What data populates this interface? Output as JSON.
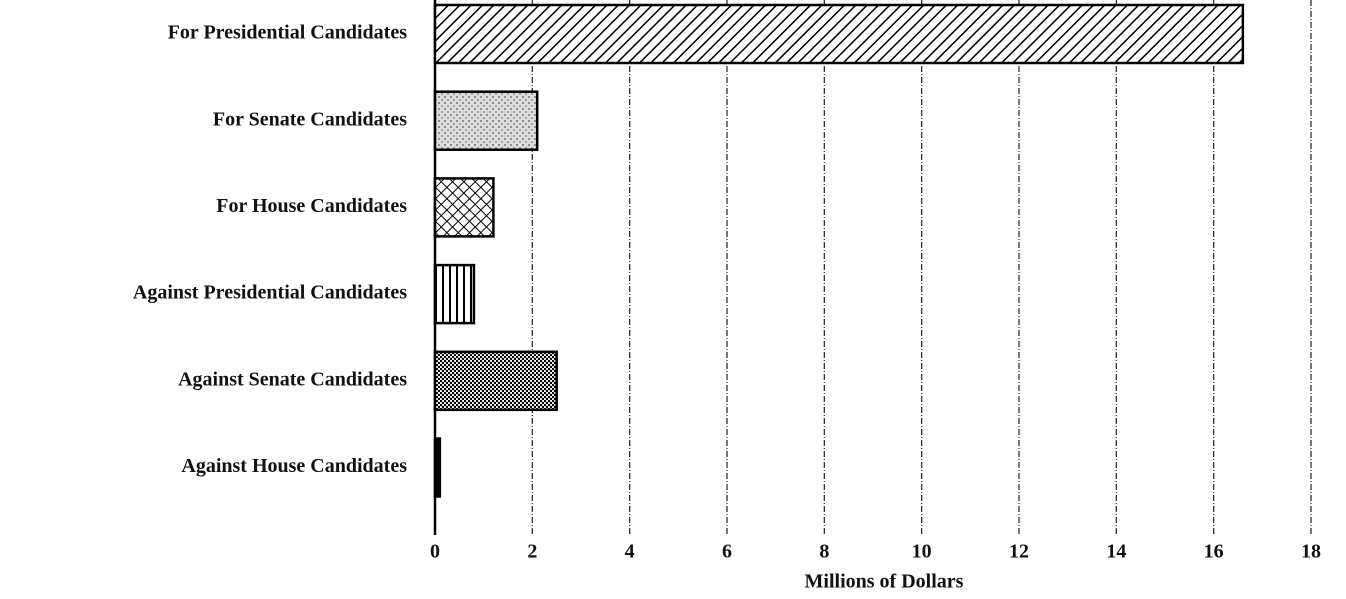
{
  "chart_data": {
    "type": "barh",
    "categories": [
      "For Presidential Candidates",
      "For Senate Candidates",
      "For House Candidates",
      "Against Presidential Candidates",
      "Against Senate Candidates",
      "Against House Candidates"
    ],
    "values": [
      16.6,
      2.1,
      1.2,
      0.8,
      2.5,
      0.1
    ],
    "patterns": [
      "diagonal",
      "stipple",
      "crosshatch",
      "vertical",
      "dots",
      "solid"
    ],
    "color": "#000000",
    "xlabel": "Millions of Dollars",
    "xlim": [
      0,
      18
    ],
    "xticks": [
      0,
      2,
      4,
      6,
      8,
      10,
      12,
      14,
      16,
      18
    ],
    "grid": true
  }
}
